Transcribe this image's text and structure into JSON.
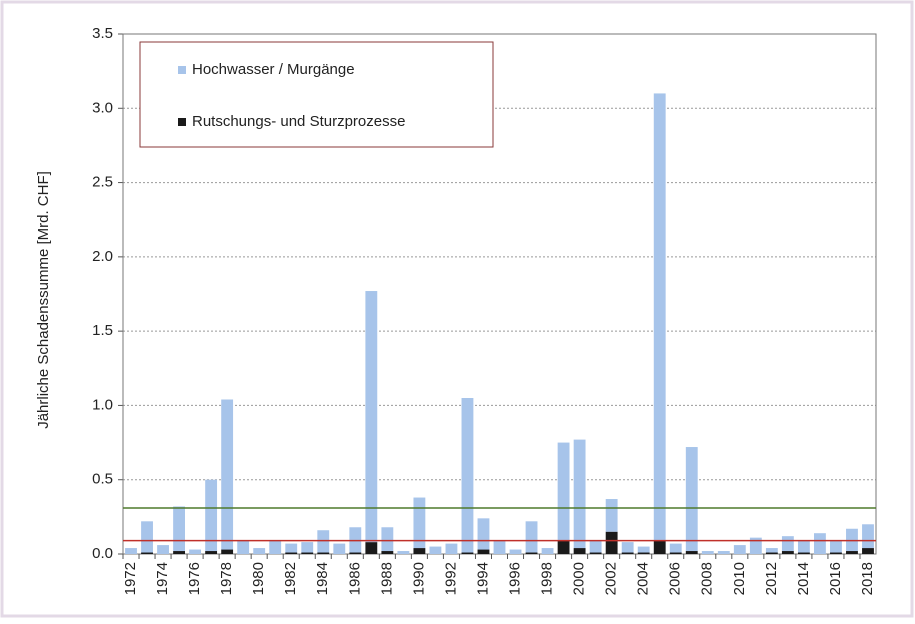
{
  "chart_data": {
    "type": "bar",
    "stacked": true,
    "y_label": "Jährliche Schadenssumme [Mrd. CHF]",
    "categories": [
      "1972",
      null,
      "1974",
      null,
      "1976",
      null,
      "1978",
      null,
      "1980",
      null,
      "1982",
      null,
      "1984",
      null,
      "1986",
      null,
      "1988",
      null,
      "1990",
      null,
      "1992",
      null,
      "1994",
      null,
      "1996",
      null,
      "1998",
      null,
      "2000",
      null,
      "2002",
      null,
      "2004",
      null,
      "2006",
      null,
      "2008",
      null,
      "2010",
      null,
      "2012",
      null,
      "2014",
      null,
      "2016",
      null,
      "2018"
    ],
    "series": [
      {
        "name": "Hochwasser / Murgänge",
        "color": "#a7c4ea",
        "values": [
          0.04,
          0.21,
          0.06,
          0.3,
          0.03,
          0.48,
          1.01,
          0.09,
          0.04,
          0.09,
          0.06,
          0.07,
          0.15,
          0.07,
          0.17,
          1.69,
          0.16,
          0.02,
          0.34,
          0.05,
          0.07,
          1.04,
          0.21,
          0.09,
          0.03,
          0.21,
          0.04,
          0.66,
          0.73,
          0.08,
          0.22,
          0.07,
          0.04,
          3.01,
          0.06,
          0.7,
          0.02,
          0.02,
          0.06,
          0.11,
          0.03,
          0.1,
          0.08,
          0.14,
          0.08,
          0.15,
          0.16
        ]
      },
      {
        "name": "Rutschungs- und Sturzprozesse",
        "color": "#1a1a1a",
        "values": [
          0,
          0.01,
          0,
          0.02,
          0,
          0.02,
          0.03,
          0,
          0,
          0,
          0.01,
          0.01,
          0.01,
          0,
          0.01,
          0.08,
          0.02,
          0,
          0.04,
          0,
          0,
          0.01,
          0.03,
          0,
          0,
          0.01,
          0,
          0.09,
          0.04,
          0.01,
          0.15,
          0.01,
          0.01,
          0.09,
          0.01,
          0.02,
          0,
          0,
          0,
          0,
          0.01,
          0.02,
          0.01,
          0,
          0.01,
          0.02,
          0.04
        ]
      }
    ],
    "reference_lines": [
      {
        "value": 0.31,
        "color": "#4f7a2c"
      },
      {
        "value": 0.09,
        "color": "#c0302a"
      }
    ],
    "ylim": [
      0,
      3.5
    ],
    "yticks": [
      {
        "value": 0,
        "label": "0.0"
      },
      {
        "value": 0.5,
        "label": "0.5"
      },
      {
        "value": 1,
        "label": "1.0"
      },
      {
        "value": 1.5,
        "label": "1.5"
      },
      {
        "value": 2,
        "label": "2.0"
      },
      {
        "value": 2.5,
        "label": "2.5"
      },
      {
        "value": 3,
        "label": "3.0"
      },
      {
        "value": 3.5,
        "label": "3.5"
      }
    ],
    "grid": true,
    "legend": "upper left"
  }
}
